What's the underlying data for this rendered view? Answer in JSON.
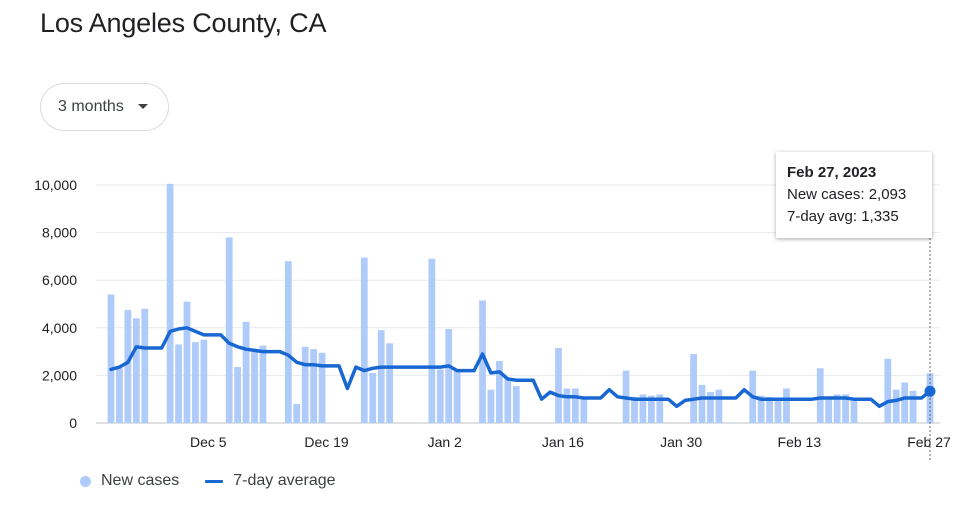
{
  "title": "Los Angeles County, CA",
  "range_selector": {
    "label": "3 months",
    "icon": "dropdown-caret-icon"
  },
  "tooltip": {
    "date": "Feb 27, 2023",
    "new_cases": "New cases: 2,093",
    "avg": "7-day avg: 1,335"
  },
  "legend": {
    "bars": "New cases",
    "line": "7-day average"
  },
  "colors": {
    "bar": "#aecbfa",
    "line": "#1967d2",
    "grid": "#e8eaed"
  },
  "chart_data": {
    "type": "bar",
    "title": "Los Angeles County, CA",
    "xlabel": "",
    "ylabel": "",
    "ylim": [
      0,
      10000
    ],
    "yticks": [
      "0",
      "2,000",
      "4,000",
      "6,000",
      "8,000",
      "10,000"
    ],
    "xticks": [
      "Dec 5",
      "Dec 19",
      "Jan 2",
      "Jan 16",
      "Jan 30",
      "Feb 13",
      "Feb 27"
    ],
    "series": [
      {
        "name": "New cases",
        "type": "bar",
        "values": [
          5400,
          2300,
          4750,
          4400,
          4800,
          null,
          null,
          10050,
          3300,
          5100,
          3400,
          3500,
          null,
          null,
          7800,
          2350,
          4250,
          3100,
          3250,
          null,
          null,
          6800,
          800,
          3200,
          3100,
          2950,
          null,
          null,
          null,
          null,
          6950,
          2100,
          3900,
          3350,
          null,
          null,
          null,
          null,
          6900,
          2250,
          3950,
          2250,
          null,
          null,
          5150,
          1400,
          2600,
          1900,
          1550,
          null,
          null,
          null,
          null,
          3150,
          1450,
          1450,
          1050,
          null,
          null,
          null,
          null,
          2200,
          1100,
          1200,
          1150,
          1200,
          null,
          null,
          null,
          2900,
          1600,
          1300,
          1400,
          null,
          null,
          null,
          2200,
          1150,
          1100,
          1050,
          1450,
          null,
          null,
          null,
          2300,
          1050,
          1200,
          1200,
          1050,
          null,
          null,
          null,
          2700,
          1400,
          1700,
          1350,
          null,
          2093
        ]
      },
      {
        "name": "7-day average",
        "type": "line",
        "values": [
          2250,
          2350,
          2550,
          3200,
          3150,
          3150,
          3150,
          3850,
          3950,
          4000,
          3850,
          3700,
          3700,
          3700,
          3350,
          3200,
          3100,
          3050,
          3000,
          3000,
          3000,
          2850,
          2550,
          2450,
          2450,
          2400,
          2400,
          2400,
          1450,
          2350,
          2200,
          2300,
          2350,
          2350,
          2350,
          2350,
          2350,
          2350,
          2350,
          2350,
          2400,
          2200,
          2200,
          2200,
          2900,
          2100,
          2150,
          1850,
          1800,
          1800,
          1800,
          1000,
          1300,
          1150,
          1100,
          1100,
          1050,
          1050,
          1050,
          1400,
          1100,
          1050,
          1000,
          1000,
          1000,
          1000,
          1000,
          700,
          950,
          1000,
          1050,
          1050,
          1050,
          1050,
          1050,
          1400,
          1100,
          1000,
          1000,
          1000,
          1000,
          1000,
          1000,
          1000,
          1050,
          1050,
          1050,
          1050,
          1000,
          1000,
          1000,
          700,
          900,
          950,
          1050,
          1050,
          1050,
          1335
        ]
      }
    ]
  }
}
